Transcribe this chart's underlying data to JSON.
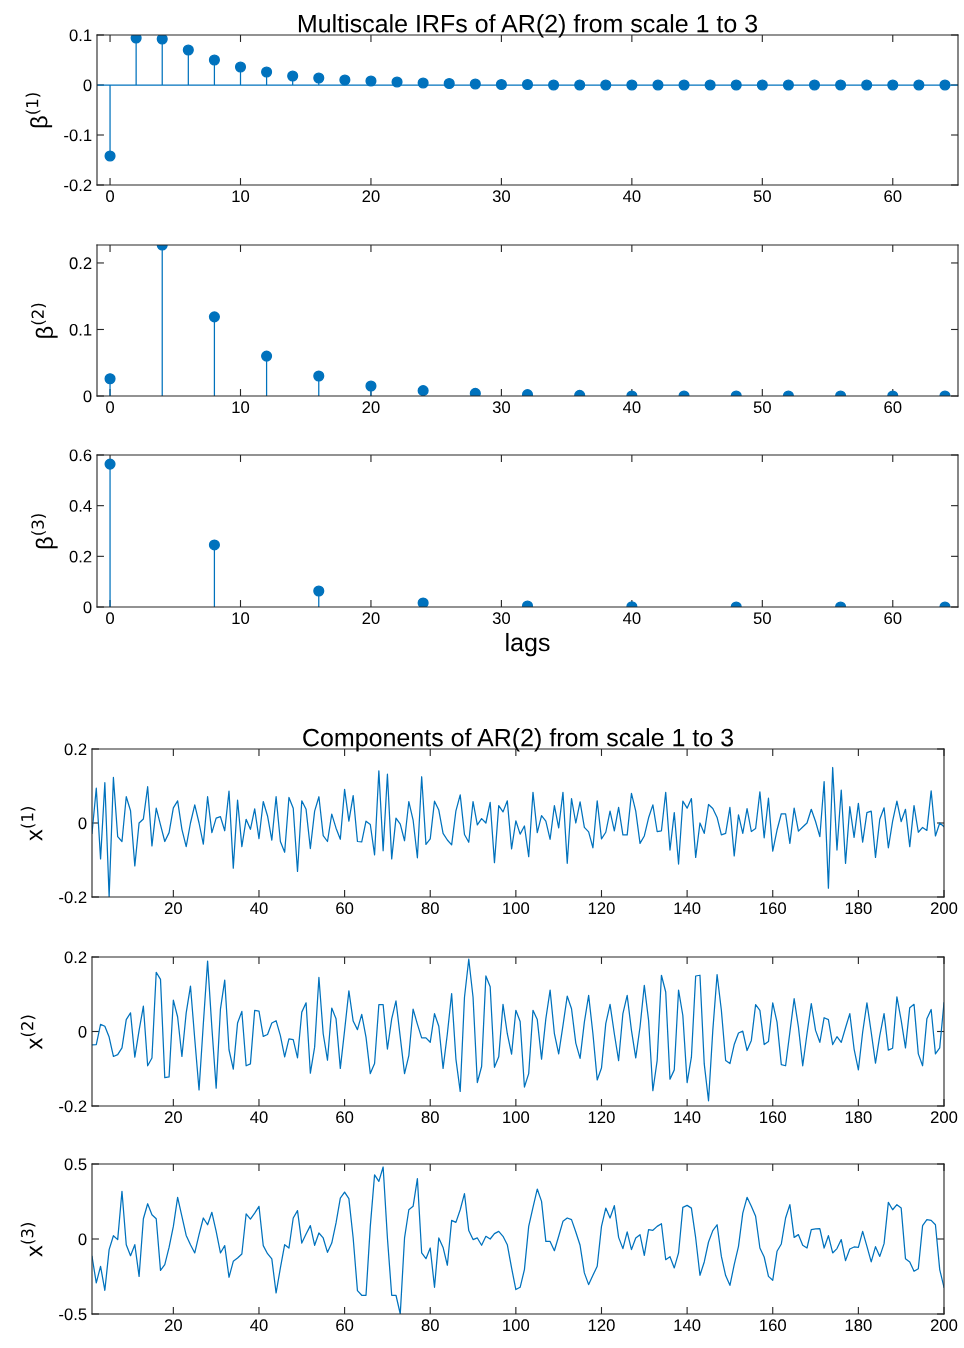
{
  "chart_data": [
    {
      "type": "lollipop",
      "title": "Multiscale IRFs of AR(2) from scale 1 to 3",
      "ylabel": "β$^{(1)}$",
      "marker": "circle",
      "grid": false,
      "x": [
        0,
        2,
        4,
        6,
        8,
        10,
        12,
        14,
        16,
        18,
        20,
        22,
        24,
        26,
        28,
        30,
        32,
        34,
        36,
        38,
        40,
        42,
        44,
        46,
        48,
        50,
        52,
        54,
        56,
        58,
        60,
        62,
        64
      ],
      "series": [
        {
          "color": "#0072bd",
          "values": [
            -0.142,
            0.094,
            0.092,
            0.07,
            0.05,
            0.036,
            0.026,
            0.018,
            0.014,
            0.01,
            0.008,
            0.006,
            0.004,
            0.003,
            0.002,
            0.001,
            0.001,
            0,
            0,
            0,
            0,
            0,
            0,
            0,
            0,
            0,
            0,
            0,
            0,
            0,
            0,
            0,
            0
          ]
        }
      ],
      "xlim": [
        -1,
        65
      ],
      "xticks": [
        0,
        10,
        20,
        30,
        40,
        50,
        60
      ],
      "ylim": [
        -0.2,
        0.1
      ],
      "yticks": [
        -0.2,
        -0.1,
        0,
        0.1
      ],
      "ref_lines": [
        {
          "axis": "y",
          "value": 0,
          "color": "#0072bd",
          "line_style": "solid"
        }
      ]
    },
    {
      "type": "lollipop",
      "ylabel": "β$^{(2)}$",
      "marker": "circle",
      "grid": false,
      "x": [
        0,
        4,
        8,
        12,
        16,
        20,
        24,
        28,
        32,
        36,
        40,
        44,
        48,
        52,
        56,
        60,
        64
      ],
      "series": [
        {
          "color": "#0072bd",
          "values": [
            0.026,
            0.227,
            0.119,
            0.06,
            0.03,
            0.015,
            0.008,
            0.004,
            0.002,
            0.001,
            0,
            0,
            0,
            0,
            0,
            0,
            0
          ]
        }
      ],
      "xlim": [
        -1,
        65
      ],
      "xticks": [
        0,
        10,
        20,
        30,
        40,
        50,
        60
      ],
      "ylim": [
        0,
        0.227
      ],
      "yticks": [
        0,
        0.1,
        0.2
      ]
    },
    {
      "type": "lollipop",
      "xlabel": "lags",
      "ylabel": "β$^{(3)}$",
      "marker": "circle",
      "grid": false,
      "x": [
        0,
        8,
        16,
        24,
        32,
        40,
        48,
        56,
        64
      ],
      "series": [
        {
          "color": "#0072bd",
          "values": [
            0.564,
            0.245,
            0.063,
            0.016,
            0.004,
            0.001,
            0,
            0,
            0
          ]
        }
      ],
      "xlim": [
        -1,
        65
      ],
      "xticks": [
        0,
        10,
        20,
        30,
        40,
        50,
        60
      ],
      "ylim": [
        0,
        0.6
      ],
      "yticks": [
        0,
        0.2,
        0.4,
        0.6
      ]
    },
    {
      "type": "line",
      "title": "Components of AR(2) from scale 1 to 3",
      "ylabel": "x$^{(1)}$",
      "marker": "none",
      "grid": false,
      "x": [
        1,
        2,
        3,
        4,
        5,
        6,
        7,
        8,
        9,
        10,
        11,
        12,
        13,
        14,
        15,
        16,
        17,
        18,
        19,
        20,
        21,
        22,
        23,
        24,
        25,
        26,
        27,
        28,
        29,
        30,
        31,
        32,
        33,
        34,
        35,
        36,
        37,
        38,
        39,
        40,
        41,
        42,
        43,
        44,
        45,
        46,
        47,
        48,
        49,
        50,
        51,
        52,
        53,
        54,
        55,
        56,
        57,
        58,
        59,
        60,
        61,
        62,
        63,
        64,
        65,
        66,
        67,
        68,
        69,
        70,
        71,
        72,
        73,
        74,
        75,
        76,
        77,
        78,
        79,
        80,
        81,
        82,
        83,
        84,
        85,
        86,
        87,
        88,
        89,
        90,
        91,
        92,
        93,
        94,
        95,
        96,
        97,
        98,
        99,
        100,
        101,
        102,
        103,
        104,
        105,
        106,
        107,
        108,
        109,
        110,
        111,
        112,
        113,
        114,
        115,
        116,
        117,
        118,
        119,
        120,
        121,
        122,
        123,
        124,
        125,
        126,
        127,
        128,
        129,
        130,
        131,
        132,
        133,
        134,
        135,
        136,
        137,
        138,
        139,
        140,
        141,
        142,
        143,
        144,
        145,
        146,
        147,
        148,
        149,
        150,
        151,
        152,
        153,
        154,
        155,
        156,
        157,
        158,
        159,
        160,
        161,
        162,
        163,
        164,
        165,
        166,
        167,
        168,
        169,
        170,
        171,
        172,
        173,
        174,
        175,
        176,
        177,
        178,
        179,
        180,
        181,
        182,
        183,
        184,
        185,
        186,
        187,
        188,
        189,
        190,
        191,
        192,
        193,
        194,
        195,
        196,
        197,
        198,
        199,
        200
      ],
      "series": [
        {
          "color": "#0072bd",
          "values": [
            -0.028,
            0.094,
            -0.097,
            0.109,
            -0.199,
            0.123,
            -0.037,
            -0.05,
            0.071,
            0.033,
            -0.116,
            0,
            0.011,
            0.098,
            -0.062,
            0.04,
            -0.005,
            -0.05,
            -0.026,
            0.041,
            0.06,
            -0.017,
            -0.064,
            0,
            0.049,
            0,
            -0.057,
            0.071,
            -0.026,
            0.013,
            0.017,
            -0.021,
            0.086,
            -0.122,
            0.062,
            -0.064,
            0.01,
            -0.017,
            0.038,
            -0.042,
            0.058,
            0.019,
            -0.046,
            0.071,
            -0.05,
            -0.079,
            0.069,
            0.04,
            -0.131,
            0.06,
            0.037,
            -0.069,
            0.032,
            0.071,
            -0.034,
            -0.05,
            0.024,
            -0.014,
            -0.044,
            0.091,
            0.005,
            0.074,
            -0.05,
            -0.051,
            0.005,
            -0.004,
            -0.086,
            0.141,
            -0.075,
            0.132,
            -0.097,
            0.013,
            -0.003,
            -0.048,
            0.058,
            0.008,
            -0.094,
            0.125,
            -0.058,
            -0.043,
            0.059,
            0.035,
            -0.028,
            -0.046,
            -0.059,
            0.033,
            0.076,
            -0.031,
            -0.052,
            0.058,
            -0.005,
            0.012,
            0,
            0.056,
            -0.107,
            0.047,
            0.03,
            0.06,
            -0.07,
            0.006,
            -0.03,
            -0.008,
            -0.091,
            0.083,
            -0.026,
            0.02,
            0.005,
            -0.044,
            0.047,
            -0.013,
            0.083,
            -0.109,
            0.066,
            0,
            0.057,
            -0.012,
            -0.024,
            -0.067,
            0.06,
            -0.043,
            -0.025,
            0.032,
            -0.021,
            0.042,
            -0.032,
            -0.032,
            0.08,
            0.032,
            -0.055,
            -0.035,
            0.014,
            0.049,
            -0.023,
            -0.021,
            0.083,
            -0.073,
            0.028,
            -0.111,
            0.059,
            0.04,
            0.066,
            -0.093,
            0,
            -0.028,
            0.05,
            0.039,
            0.015,
            -0.032,
            -0.028,
            0.042,
            -0.089,
            0.022,
            -0.028,
            0.039,
            -0.023,
            -0.015,
            0.084,
            -0.04,
            0.067,
            -0.076,
            -0.019,
            0.025,
            0.025,
            -0.055,
            0.04,
            -0.022,
            -0.011,
            0,
            0.037,
            0.004,
            -0.037,
            0.112,
            -0.176,
            0.15,
            -0.073,
            0.089,
            -0.109,
            0.044,
            -0.039,
            0.053,
            -0.052,
            0.028,
            0.032,
            -0.093,
            0.01,
            0.041,
            -0.067,
            0.005,
            0.059,
            0.004,
            0.037,
            -0.064,
            0.047,
            -0.025,
            -0.012,
            -0.02,
            0.087,
            -0.035,
            0,
            -0.01
          ]
        }
      ],
      "xlim": [
        1,
        200
      ],
      "xticks": [
        20,
        40,
        60,
        80,
        100,
        120,
        140,
        160,
        180,
        200
      ],
      "ylim": [
        -0.2,
        0.2
      ],
      "yticks": [
        -0.2,
        0,
        0.2
      ]
    },
    {
      "type": "line",
      "ylabel": "x$^{(2)}$",
      "marker": "none",
      "grid": false,
      "x": [
        1,
        2,
        3,
        4,
        5,
        6,
        7,
        8,
        9,
        10,
        11,
        12,
        13,
        14,
        15,
        16,
        17,
        18,
        19,
        20,
        21,
        22,
        23,
        24,
        25,
        26,
        27,
        28,
        29,
        30,
        31,
        32,
        33,
        34,
        35,
        36,
        37,
        38,
        39,
        40,
        41,
        42,
        43,
        44,
        45,
        46,
        47,
        48,
        49,
        50,
        51,
        52,
        53,
        54,
        55,
        56,
        57,
        58,
        59,
        60,
        61,
        62,
        63,
        64,
        65,
        66,
        67,
        68,
        69,
        70,
        71,
        72,
        73,
        74,
        75,
        76,
        77,
        78,
        79,
        80,
        81,
        82,
        83,
        84,
        85,
        86,
        87,
        88,
        89,
        90,
        91,
        92,
        93,
        94,
        95,
        96,
        97,
        98,
        99,
        100,
        101,
        102,
        103,
        104,
        105,
        106,
        107,
        108,
        109,
        110,
        111,
        112,
        113,
        114,
        115,
        116,
        117,
        118,
        119,
        120,
        121,
        122,
        123,
        124,
        125,
        126,
        127,
        128,
        129,
        130,
        131,
        132,
        133,
        134,
        135,
        136,
        137,
        138,
        139,
        140,
        141,
        142,
        143,
        144,
        145,
        146,
        147,
        148,
        149,
        150,
        151,
        152,
        153,
        154,
        155,
        156,
        157,
        158,
        159,
        160,
        161,
        162,
        163,
        164,
        165,
        166,
        167,
        168,
        169,
        170,
        171,
        172,
        173,
        174,
        175,
        176,
        177,
        178,
        179,
        180,
        181,
        182,
        183,
        184,
        185,
        186,
        187,
        188,
        189,
        190,
        191,
        192,
        193,
        194,
        195,
        196,
        197,
        198,
        199,
        200
      ],
      "series": [
        {
          "color": "#0072bd",
          "values": [
            -0.036,
            -0.035,
            0.019,
            0.014,
            -0.015,
            -0.067,
            -0.062,
            -0.044,
            0.032,
            0.05,
            -0.069,
            0.003,
            0.068,
            -0.092,
            -0.071,
            0.159,
            0.14,
            -0.124,
            -0.122,
            0.084,
            0.039,
            -0.067,
            0.05,
            0.122,
            -0.02,
            -0.157,
            0.02,
            0.189,
            0.01,
            -0.152,
            0.06,
            0.138,
            -0.049,
            -0.101,
            0.023,
            0.054,
            -0.092,
            -0.087,
            0.057,
            0.055,
            -0.013,
            -0.008,
            0.023,
            0.029,
            -0.011,
            -0.068,
            -0.02,
            -0.022,
            -0.071,
            0.052,
            0.077,
            -0.112,
            -0.042,
            0.145,
            -0.006,
            -0.077,
            0.063,
            0.034,
            -0.099,
            0.003,
            0.109,
            0.028,
            0.005,
            0.046,
            -0.015,
            -0.113,
            -0.086,
            0.072,
            0.072,
            -0.047,
            0.034,
            0.082,
            -0.015,
            -0.113,
            -0.065,
            0.06,
            0.02,
            -0.017,
            -0.017,
            -0.029,
            0.048,
            0.014,
            -0.099,
            -0.006,
            0.102,
            -0.074,
            -0.161,
            0.092,
            0.194,
            0.092,
            -0.137,
            -0.094,
            0.149,
            0.12,
            -0.096,
            -0.068,
            0.073,
            -0.006,
            -0.061,
            0.057,
            0.027,
            -0.149,
            -0.113,
            0.057,
            0.032,
            -0.074,
            0.034,
            0.111,
            -0.006,
            -0.06,
            0.016,
            0.095,
            0.061,
            -0.031,
            -0.072,
            0.025,
            0.097,
            -0.006,
            -0.13,
            -0.098,
            0.021,
            0.073,
            -0.006,
            -0.078,
            0.048,
            0.097,
            0.003,
            -0.071,
            0.012,
            0.124,
            0.03,
            -0.159,
            -0.078,
            0.151,
            0.106,
            -0.128,
            -0.103,
            0.111,
            0.043,
            -0.137,
            -0.069,
            0.149,
            0.151,
            -0.087,
            -0.186,
            0.003,
            0.153,
            0.057,
            -0.078,
            -0.086,
            -0.035,
            -0.004,
            0.001,
            -0.051,
            -0.024,
            0.072,
            0.057,
            -0.035,
            -0.027,
            0.077,
            0.025,
            -0.089,
            -0.092,
            -0.002,
            0.088,
            0.012,
            -0.092,
            -0.006,
            0.075,
            0.003,
            -0.029,
            0.037,
            0.032,
            -0.035,
            -0.014,
            -0.029,
            0.01,
            0.048,
            -0.047,
            -0.103,
            -0.002,
            0.077,
            -0.002,
            -0.085,
            -0.011,
            0.048,
            -0.05,
            -0.045,
            0.093,
            0.03,
            -0.044,
            0.064,
            0.073,
            -0.06,
            -0.092,
            0.034,
            0.059,
            -0.06,
            -0.044,
            0.077
          ]
        }
      ],
      "xlim": [
        1,
        200
      ],
      "xticks": [
        20,
        40,
        60,
        80,
        100,
        120,
        140,
        160,
        180,
        200
      ],
      "ylim": [
        -0.2,
        0.2
      ],
      "yticks": [
        -0.2,
        0,
        0.2
      ]
    },
    {
      "type": "line",
      "ylabel": "x$^{(3)}$",
      "marker": "none",
      "grid": false,
      "x": [
        1,
        2,
        3,
        4,
        5,
        6,
        7,
        8,
        9,
        10,
        11,
        12,
        13,
        14,
        15,
        16,
        17,
        18,
        19,
        20,
        21,
        22,
        23,
        24,
        25,
        26,
        27,
        28,
        29,
        30,
        31,
        32,
        33,
        34,
        35,
        36,
        37,
        38,
        39,
        40,
        41,
        42,
        43,
        44,
        45,
        46,
        47,
        48,
        49,
        50,
        51,
        52,
        53,
        54,
        55,
        56,
        57,
        58,
        59,
        60,
        61,
        62,
        63,
        64,
        65,
        66,
        67,
        68,
        69,
        70,
        71,
        72,
        73,
        74,
        75,
        76,
        77,
        78,
        79,
        80,
        81,
        82,
        83,
        84,
        85,
        86,
        87,
        88,
        89,
        90,
        91,
        92,
        93,
        94,
        95,
        96,
        97,
        98,
        99,
        100,
        101,
        102,
        103,
        104,
        105,
        106,
        107,
        108,
        109,
        110,
        111,
        112,
        113,
        114,
        115,
        116,
        117,
        118,
        119,
        120,
        121,
        122,
        123,
        124,
        125,
        126,
        127,
        128,
        129,
        130,
        131,
        132,
        133,
        134,
        135,
        136,
        137,
        138,
        139,
        140,
        141,
        142,
        143,
        144,
        145,
        146,
        147,
        148,
        149,
        150,
        151,
        152,
        153,
        154,
        155,
        156,
        157,
        158,
        159,
        160,
        161,
        162,
        163,
        164,
        165,
        166,
        167,
        168,
        169,
        170,
        171,
        172,
        173,
        174,
        175,
        176,
        177,
        178,
        179,
        180,
        181,
        182,
        183,
        184,
        185,
        186,
        187,
        188,
        189,
        190,
        191,
        192,
        193,
        194,
        195,
        196,
        197,
        198,
        199,
        200
      ],
      "series": [
        {
          "color": "#0072bd",
          "values": [
            -0.116,
            -0.293,
            -0.182,
            -0.342,
            -0.071,
            0.022,
            -0.004,
            0.318,
            -0.038,
            -0.111,
            -0.038,
            -0.249,
            0.135,
            0.235,
            0.162,
            0.135,
            -0.209,
            -0.171,
            -0.056,
            0.084,
            0.278,
            0.151,
            0.024,
            -0.038,
            -0.093,
            0.029,
            0.14,
            0.095,
            0.178,
            0.051,
            -0.093,
            -0.044,
            -0.255,
            -0.149,
            -0.127,
            -0.1,
            0.167,
            0.133,
            0.173,
            0.218,
            -0.044,
            -0.098,
            -0.133,
            -0.36,
            -0.193,
            -0.038,
            -0.06,
            0.14,
            0.189,
            -0.027,
            0.033,
            0.089,
            -0.042,
            0.04,
            0.007,
            -0.089,
            -0.027,
            0.107,
            0.273,
            0.313,
            0.269,
            0.007,
            -0.344,
            -0.375,
            -0.375,
            0.084,
            0.428,
            0.384,
            0.48,
            0.007,
            -0.375,
            -0.375,
            -0.5,
            0.007,
            0.195,
            0.218,
            0.402,
            -0.093,
            -0.131,
            -0.06,
            -0.322,
            0.007,
            -0.056,
            -0.175,
            0.124,
            0.111,
            0.195,
            0.302,
            0.056,
            -0.004,
            0.007,
            -0.042,
            0.018,
            0,
            0.036,
            0.051,
            0.018,
            -0.038,
            -0.193,
            -0.337,
            -0.322,
            -0.204,
            0.084,
            0.211,
            0.333,
            0.251,
            -0.016,
            -0.016,
            -0.078,
            0.018,
            0.118,
            0.14,
            0.129,
            0.047,
            -0.042,
            -0.226,
            -0.304,
            -0.242,
            -0.182,
            0.084,
            0.206,
            0.14,
            0.222,
            0.011,
            -0.064,
            0.047,
            -0.071,
            0.007,
            0.029,
            -0.109,
            0.062,
            0.058,
            0.084,
            0.102,
            -0.138,
            -0.118,
            -0.193,
            -0.093,
            0.211,
            0.224,
            0.206,
            0.007,
            -0.242,
            -0.153,
            -0.02,
            0.056,
            0.095,
            -0.116,
            -0.244,
            -0.309,
            -0.171,
            -0.049,
            0.173,
            0.278,
            0.218,
            0.151,
            -0.06,
            -0.12,
            -0.249,
            -0.275,
            -0.082,
            -0.033,
            0.14,
            0.229,
            0.011,
            0.029,
            -0.042,
            -0.06,
            0.062,
            0.067,
            0.069,
            -0.06,
            0.022,
            -0.093,
            -0.064,
            -0.004,
            -0.144,
            -0.067,
            -0.053,
            -0.056,
            0.051,
            -0.049,
            -0.153,
            -0.051,
            -0.116,
            -0.031,
            0.244,
            0.195,
            0.229,
            0.206,
            -0.131,
            -0.153,
            -0.215,
            -0.198,
            0.089,
            0.129,
            0.124,
            0.095,
            -0.204,
            -0.322
          ]
        }
      ],
      "xlim": [
        1,
        200
      ],
      "xticks": [
        20,
        40,
        60,
        80,
        100,
        120,
        140,
        160,
        180,
        200
      ],
      "ylim": [
        -0.5,
        0.5
      ],
      "yticks": [
        -0.5,
        0,
        0.5
      ]
    }
  ]
}
